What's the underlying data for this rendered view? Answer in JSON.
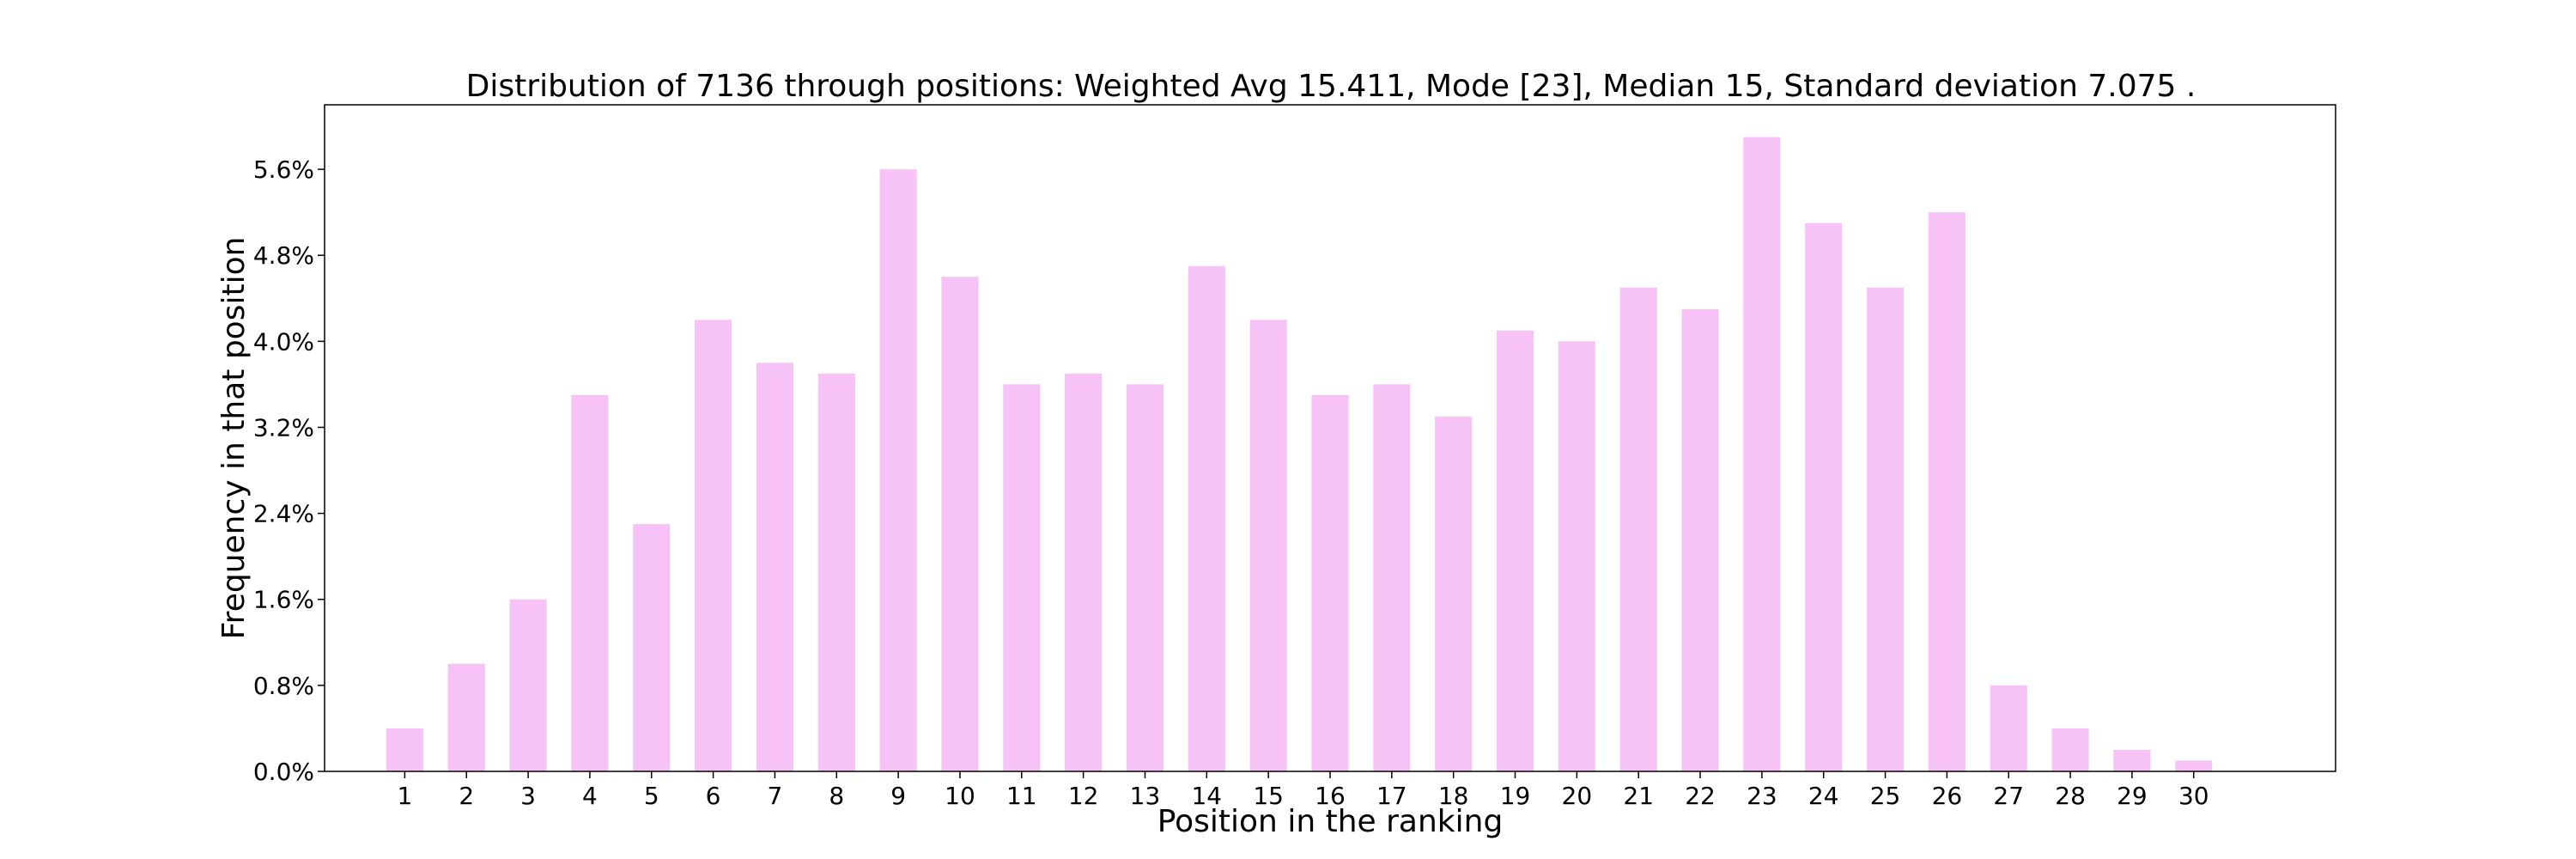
{
  "chart_data": {
    "type": "bar",
    "title": "Distribution of 7136 through positions: Weighted Avg 15.411, Mode [23], Median 15, Standard deviation 7.075 .",
    "xlabel": "Position in the ranking",
    "ylabel": "Frequency in that position",
    "categories": [
      "1",
      "2",
      "3",
      "4",
      "5",
      "6",
      "7",
      "8",
      "9",
      "10",
      "11",
      "12",
      "13",
      "14",
      "15",
      "16",
      "17",
      "18",
      "19",
      "20",
      "21",
      "22",
      "23",
      "24",
      "25",
      "26",
      "27",
      "28",
      "29",
      "30"
    ],
    "values": [
      0.4,
      1.0,
      1.6,
      3.5,
      2.3,
      4.2,
      3.8,
      3.7,
      5.6,
      4.6,
      3.6,
      3.7,
      3.6,
      4.7,
      4.2,
      3.5,
      3.6,
      3.3,
      4.1,
      4.0,
      4.5,
      4.3,
      5.9,
      5.1,
      4.5,
      5.2,
      0.8,
      0.4,
      0.2,
      0.1
    ],
    "value_unit": "%",
    "yticks": [
      "0.0%",
      "0.8%",
      "1.6%",
      "2.4%",
      "3.2%",
      "4.0%",
      "4.8%",
      "5.6%"
    ],
    "ytick_values": [
      0.0,
      0.8,
      1.6,
      2.4,
      3.2,
      4.0,
      4.8,
      5.6
    ],
    "ylim": [
      0,
      6.2
    ],
    "xlim": [
      -1.3,
      31.3
    ],
    "grid": false,
    "legend": "none",
    "bar_color": "#f7c3f7"
  }
}
